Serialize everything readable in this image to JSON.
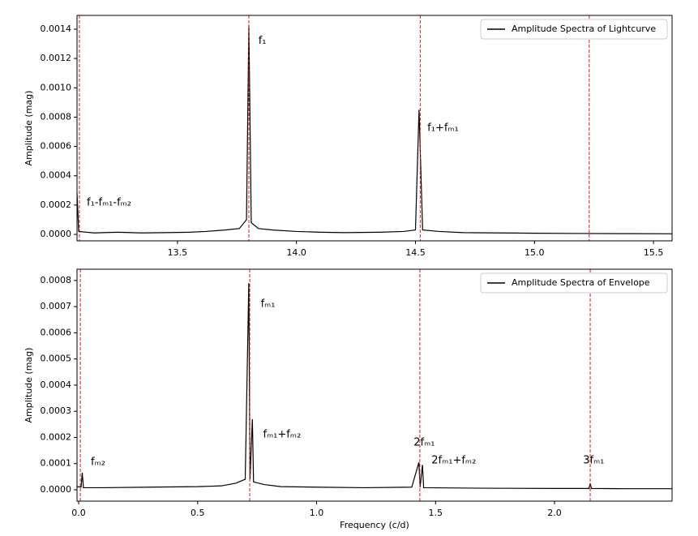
{
  "chart_data": [
    {
      "type": "line",
      "ylabel": "Amplitude (mag)",
      "xlim": [
        13.078,
        15.578
      ],
      "ylim": [
        -4.4e-05,
        0.001494
      ],
      "xticks": [
        13.5,
        {
          "value": 14.0,
          "label": "14.0"
        },
        14.5,
        {
          "value": 15.0,
          "label": "15.0"
        },
        15.5
      ],
      "yticks": [
        {
          "value": 0,
          "label": "0.0000"
        },
        {
          "value": 0.0002,
          "label": "0.0002"
        },
        {
          "value": 0.0004,
          "label": "0.0004"
        },
        {
          "value": 0.0006,
          "label": "0.0006"
        },
        {
          "value": 0.0008,
          "label": "0.0008"
        },
        {
          "value": 0.001,
          "label": "0.0010"
        },
        {
          "value": 0.0012,
          "label": "0.0012"
        },
        {
          "value": 0.0014,
          "label": "0.0014"
        }
      ],
      "legend": "upper right",
      "vline_color": "#e31a1c",
      "vlines": [
        13.088,
        13.8,
        14.52,
        15.23
      ],
      "series": [
        {
          "name": "Amplitude Spectra of Lightcurve",
          "color": "#000000",
          "x": [
            13.078,
            13.085,
            13.15,
            13.25,
            13.35,
            13.45,
            13.55,
            13.62,
            13.7,
            13.76,
            13.79,
            13.8,
            13.81,
            13.84,
            13.9,
            14.0,
            14.1,
            14.2,
            14.35,
            14.45,
            14.5,
            14.515,
            14.53,
            14.6,
            14.7,
            14.85,
            15.0,
            15.2,
            15.4,
            15.578
          ],
          "values": [
            0.00028,
            2e-05,
            1e-05,
            1.5e-05,
            1e-05,
            1.2e-05,
            1.5e-05,
            2e-05,
            3e-05,
            4e-05,
            0.0001,
            0.00143,
            8e-05,
            4e-05,
            3e-05,
            2e-05,
            1.5e-05,
            1.2e-05,
            1.5e-05,
            2e-05,
            3e-05,
            0.00085,
            3e-05,
            2e-05,
            1.2e-05,
            1e-05,
            8e-06,
            6e-06,
            5e-06,
            4e-06
          ]
        }
      ],
      "annotations": [
        {
          "text": "f₁",
          "x": 13.84,
          "y": 0.00132
        },
        {
          "text": "f₁+fₘ₁",
          "x": 14.55,
          "y": 0.000725
        },
        {
          "text": "f₁-fₘ₁-fₘ₂",
          "x": 13.119,
          "y": 0.000216
        }
      ]
    },
    {
      "type": "line",
      "xlabel": "Frequency (c/d)",
      "ylabel": "Amplitude (mag)",
      "xlim": [
        -0.007,
        2.494
      ],
      "ylim": [
        -4.34e-05,
        0.000843
      ],
      "xticks": [
        {
          "value": 0,
          "label": "0.0"
        },
        0.5,
        {
          "value": 1.0,
          "label": "1.0"
        },
        1.5,
        {
          "value": 2.0,
          "label": "2.0"
        }
      ],
      "yticks": [
        {
          "value": 0,
          "label": "0.0000"
        },
        {
          "value": 0.0001,
          "label": "0.0001"
        },
        {
          "value": 0.0002,
          "label": "0.0002"
        },
        {
          "value": 0.0003,
          "label": "0.0003"
        },
        {
          "value": 0.0004,
          "label": "0.0004"
        },
        {
          "value": 0.0005,
          "label": "0.0005"
        },
        {
          "value": 0.0006,
          "label": "0.0006"
        },
        {
          "value": 0.0007,
          "label": "0.0007"
        },
        {
          "value": 0.0008,
          "label": "0.0008"
        }
      ],
      "legend": "upper right",
      "vline_color": "#e31a1c",
      "vlines": [
        0.007,
        0.719,
        1.434,
        2.15
      ],
      "series": [
        {
          "name": "Amplitude Spectra of Envelope",
          "color": "#000000",
          "x": [
            -0.007,
            0.01,
            0.015,
            0.02,
            0.1,
            0.3,
            0.5,
            0.6,
            0.66,
            0.7,
            0.715,
            0.72,
            0.73,
            0.735,
            0.78,
            0.85,
            1.0,
            1.2,
            1.4,
            1.43,
            1.435,
            1.445,
            1.45,
            1.7,
            2.0,
            2.145,
            2.15,
            2.155,
            2.3,
            2.494
          ],
          "values": [
            1.2e-05,
            1e-05,
            6.5e-05,
            8e-06,
            8e-06,
            1e-05,
            1.2e-05,
            1.5e-05,
            2.5e-05,
            4e-05,
            0.00079,
            4e-05,
            0.00027,
            3e-05,
            2e-05,
            1.2e-05,
            1e-05,
            8e-06,
            1e-05,
            0.000105,
            1e-05,
            9.5e-05,
            8e-06,
            6e-06,
            5e-06,
            5e-06,
            2.5e-05,
            5e-06,
            4e-06,
            4e-06
          ]
        }
      ],
      "annotations": [
        {
          "text": "fₘ₁",
          "x": 0.765,
          "y": 0.00071
        },
        {
          "text": "fₘ₁+fₘ₂",
          "x": 0.775,
          "y": 0.000211
        },
        {
          "text": "fₘ₂",
          "x": 0.051,
          "y": 0.000105
        },
        {
          "text": "2fₘ₁",
          "x": 1.408,
          "y": 0.00018
        },
        {
          "text": "2fₘ₁+fₘ₂",
          "x": 1.483,
          "y": 0.000112
        },
        {
          "text": "3fₘ₁",
          "x": 2.12,
          "y": 0.000112
        }
      ]
    }
  ]
}
